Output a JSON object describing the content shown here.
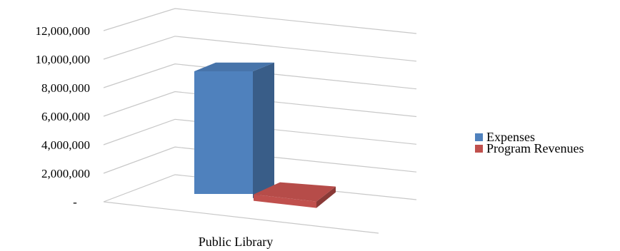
{
  "chart_data": {
    "type": "bar",
    "title": "",
    "xlabel": "",
    "ylabel": "",
    "categories": [
      "Public Library"
    ],
    "series": [
      {
        "name": "Expenses",
        "values": [
          10000000
        ],
        "color": "#4f81bd"
      },
      {
        "name": "Program Revenues",
        "values": [
          200000
        ],
        "color": "#c0504d"
      }
    ],
    "ylim": [
      0,
      12000000
    ],
    "yticks": [
      0,
      2000000,
      4000000,
      6000000,
      8000000,
      10000000,
      12000000
    ],
    "ytick_labels": [
      "-",
      "2,000,000",
      "4,000,000",
      "6,000,000",
      "8,000,000",
      "10,000,000",
      "12,000,000"
    ],
    "grid": true,
    "legend_position": "right",
    "style": "3d-column"
  }
}
